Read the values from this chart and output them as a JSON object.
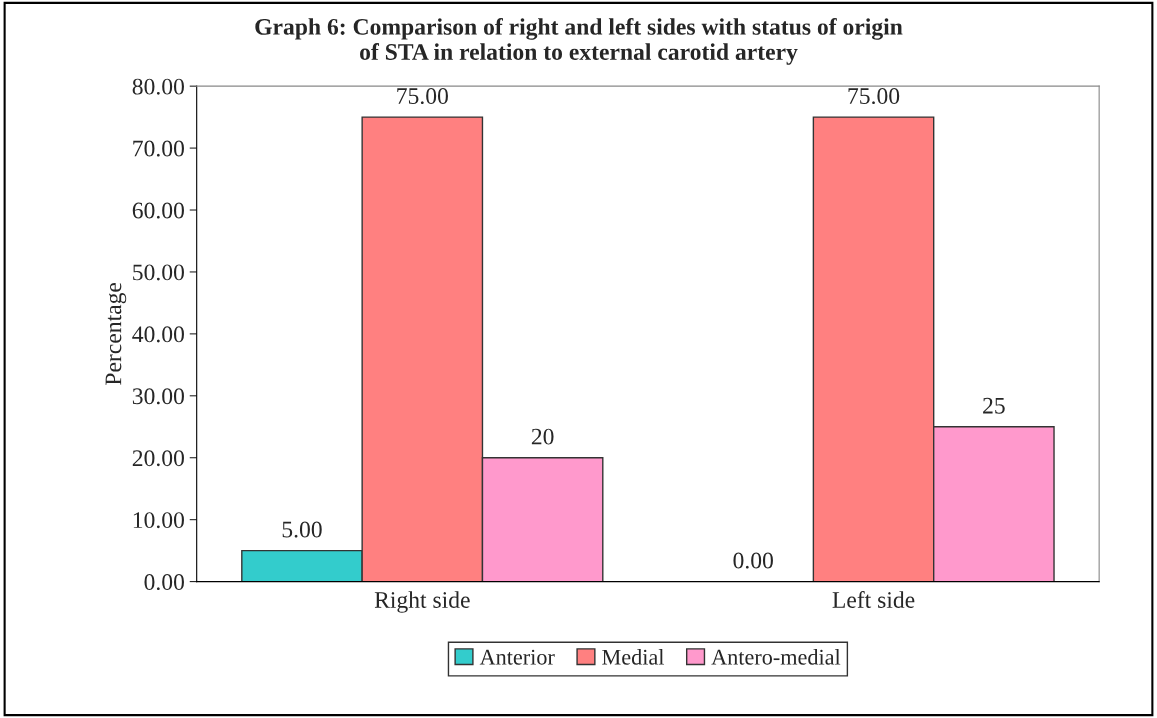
{
  "chart_data": {
    "type": "bar",
    "title": "Graph 6: Comparison of right and left sides with status of origin\nof STA in relation to external carotid artery",
    "ylabel": "Percentage",
    "categories": [
      "Right side",
      "Left side"
    ],
    "series": [
      {
        "name": "Anterior",
        "color": "#33cccc",
        "values": [
          5,
          0
        ],
        "value_labels": [
          "5.00",
          "0.00"
        ]
      },
      {
        "name": "Medial",
        "color": "#ff8080",
        "values": [
          75,
          75
        ],
        "value_labels": [
          "75.00",
          "75.00"
        ]
      },
      {
        "name": "Antero-medial",
        "color": "#ff99cc",
        "values": [
          20,
          25
        ],
        "value_labels": [
          "20",
          "25"
        ]
      }
    ],
    "ylim": [
      0,
      80
    ],
    "yticks": [
      {
        "value": 0,
        "label": "0.00"
      },
      {
        "value": 10,
        "label": "10.00"
      },
      {
        "value": 20,
        "label": "20.00"
      },
      {
        "value": 30,
        "label": "30.00"
      },
      {
        "value": 40,
        "label": "40.00"
      },
      {
        "value": 50,
        "label": "50.00"
      },
      {
        "value": 60,
        "label": "60.00"
      },
      {
        "value": 70,
        "label": "70.00"
      },
      {
        "value": 80,
        "label": "80.00"
      }
    ],
    "grid": false,
    "legend": "bottom"
  }
}
